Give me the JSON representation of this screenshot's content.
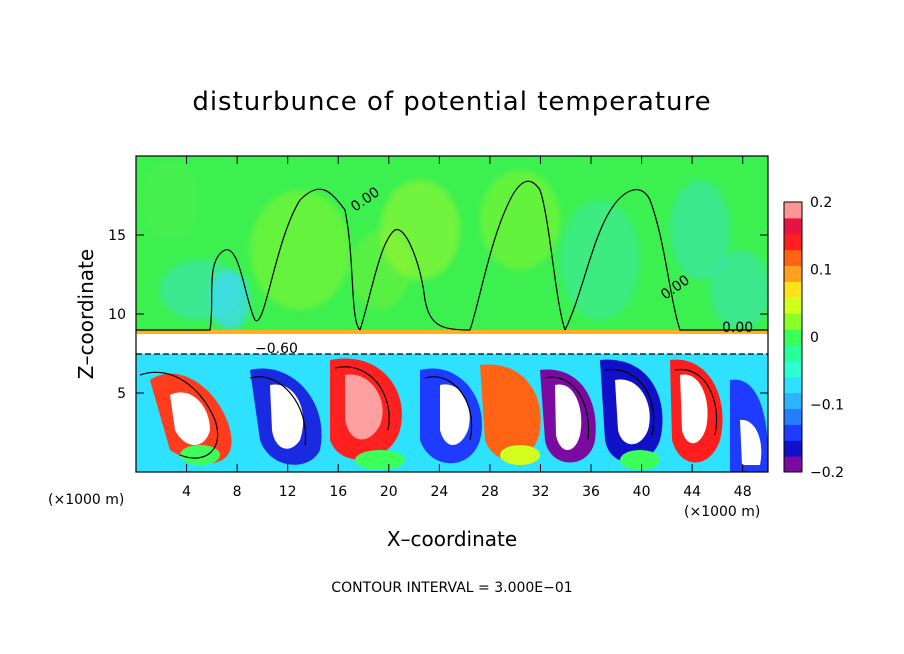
{
  "chart_data": {
    "type": "heatmap",
    "title": "disturbunce of potential temperature",
    "xlabel": "X–coordinate",
    "ylabel": "Z–coordinate",
    "x_unit": "(×1000 m)",
    "x_unit_right": "(×1000 m)",
    "xlim": [
      0,
      50
    ],
    "ylim": [
      0,
      20
    ],
    "x_ticks": [
      4,
      8,
      12,
      16,
      20,
      24,
      28,
      32,
      36,
      40,
      44,
      48
    ],
    "y_ticks": [
      5,
      10,
      15
    ],
    "colorbar": {
      "range": [
        -0.2,
        0.2
      ],
      "ticks": [
        "0.2",
        "0.1",
        "0",
        "−0.1",
        "−0.2"
      ],
      "tick_values": [
        0.2,
        0.1,
        0,
        -0.1,
        -0.2
      ],
      "colors": [
        "#7a0aa0",
        "#1010c8",
        "#1e3cff",
        "#287dff",
        "#2db4ff",
        "#2de1ff",
        "#2dffd2",
        "#28ff9b",
        "#3cff5a",
        "#8cff28",
        "#d2ff1e",
        "#ffe11e",
        "#ffa01e",
        "#ff6414",
        "#ff1e1e",
        "#e61446",
        "#ff9696"
      ]
    },
    "contour_labels": [
      "0.00",
      "0.00",
      "0.00",
      "−0.60"
    ],
    "footer": "CONTOUR INTERVAL = 3.000E−01"
  }
}
